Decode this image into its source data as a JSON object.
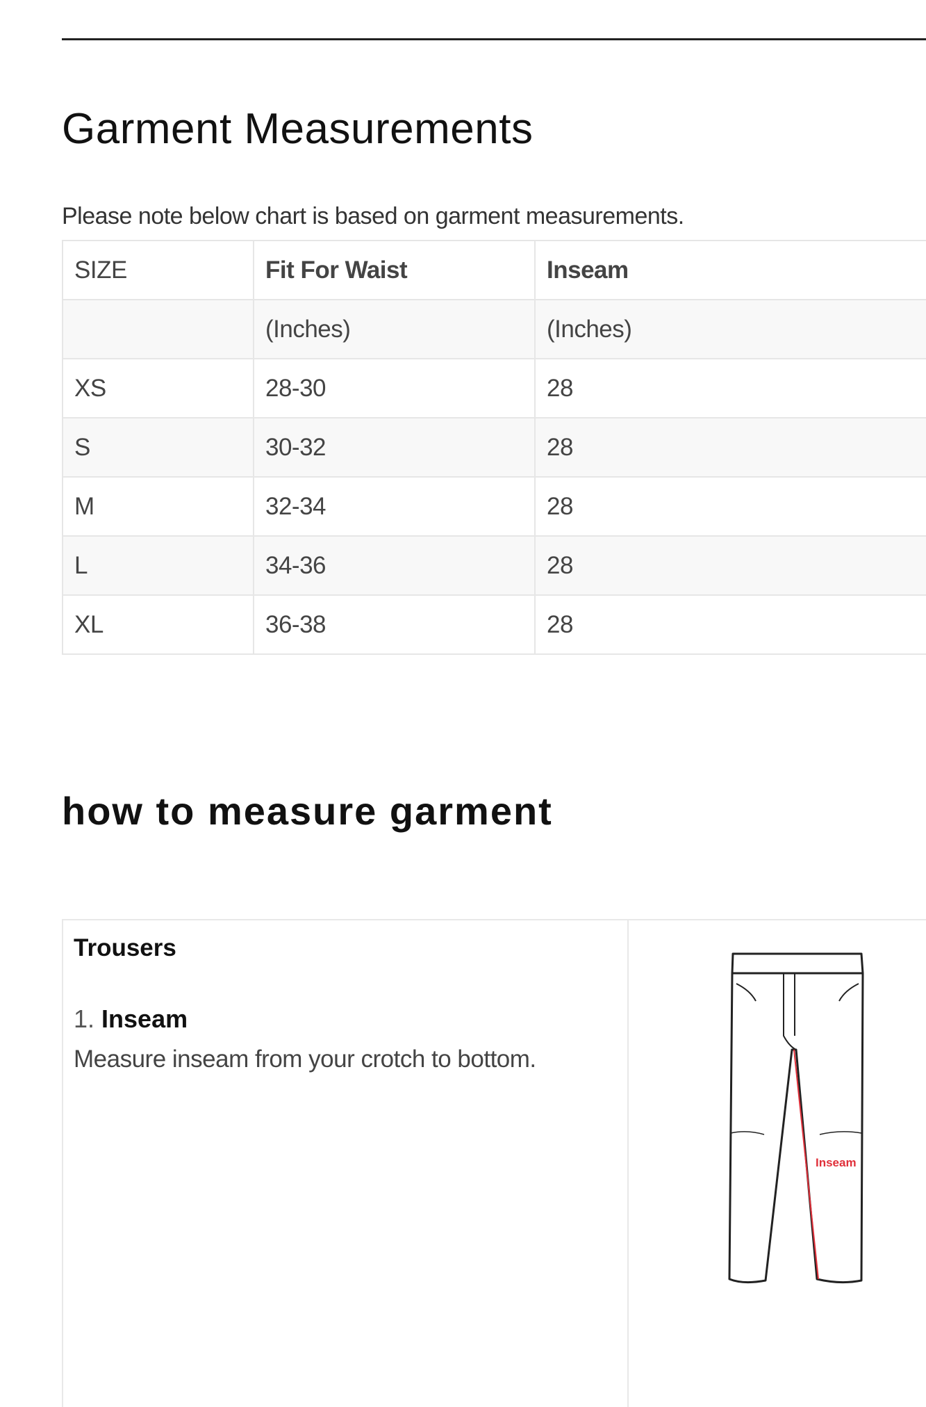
{
  "header": {
    "title": "Garment Measurements",
    "note": "Please note below chart is based on garment measurements."
  },
  "size_table": {
    "headers": [
      "SIZE",
      "Fit For Waist",
      "Inseam"
    ],
    "units": [
      "",
      "(Inches)",
      "(Inches)"
    ],
    "rows": [
      [
        "XS",
        "28-30",
        "28"
      ],
      [
        "S",
        "30-32",
        "28"
      ],
      [
        "M",
        "32-34",
        "28"
      ],
      [
        "L",
        "34-36",
        "28"
      ],
      [
        "XL",
        "36-38",
        "28"
      ]
    ]
  },
  "how_to": {
    "title": "how to measure garment",
    "category": "Trousers",
    "step_number": "1.",
    "step_title": "Inseam",
    "step_description": "Measure inseam from your crotch to bottom.",
    "image_label": "Inseam",
    "image_accent": "#e0303a"
  }
}
